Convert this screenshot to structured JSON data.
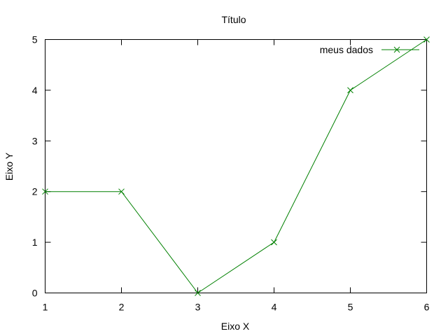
{
  "chart_data": {
    "type": "line",
    "title": "Título",
    "xlabel": "Eixo X",
    "ylabel": "Eixo Y",
    "xlim": [
      1,
      6
    ],
    "ylim": [
      0,
      5
    ],
    "xticks": [
      "1",
      "2",
      "3",
      "4",
      "5",
      "6"
    ],
    "yticks": [
      "0",
      "1",
      "2",
      "3",
      "4",
      "5"
    ],
    "grid": false,
    "legend_position": "top-right",
    "series": [
      {
        "name": "meus dados",
        "color": "#008000",
        "marker": "cross",
        "x": [
          1,
          2,
          3,
          4,
          5,
          6
        ],
        "y": [
          2,
          2,
          0,
          1,
          4,
          5
        ]
      }
    ]
  }
}
